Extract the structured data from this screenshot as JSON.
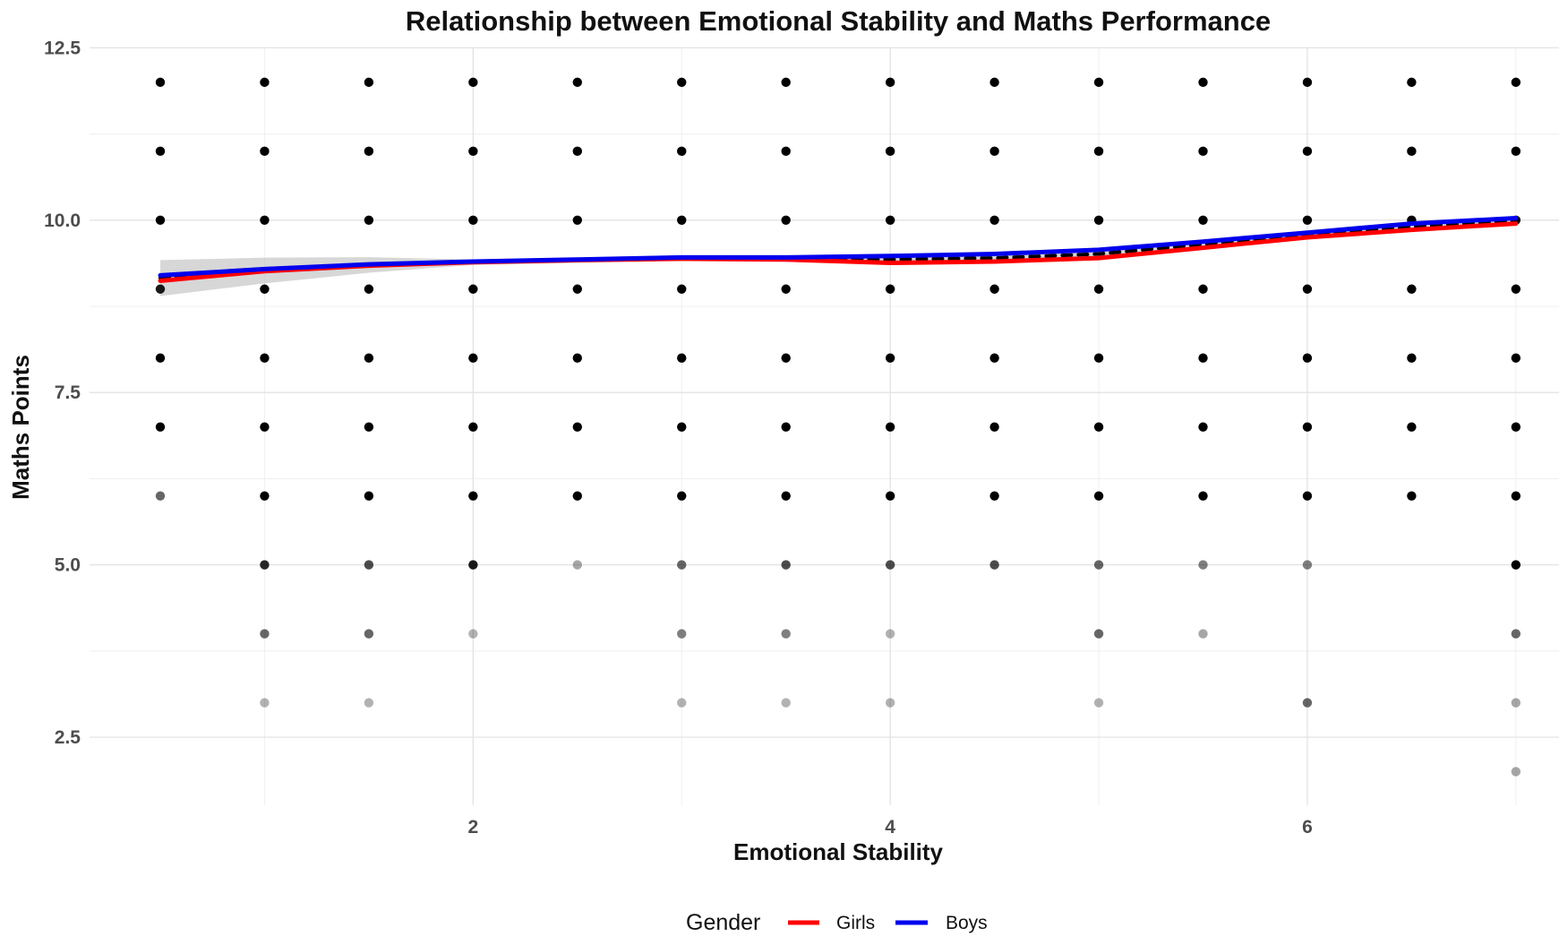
{
  "chart_data": {
    "type": "scatter",
    "title": "Relationship between Emotional Stability and Maths Performance",
    "xlabel": "Emotional Stability",
    "ylabel": "Maths Points",
    "xlim": [
      0.25,
      7.25
    ],
    "ylim": [
      1.55,
      12.5
    ],
    "x_ticks": [
      2,
      4,
      6
    ],
    "y_ticks": [
      2.5,
      5.0,
      7.5,
      10.0,
      12.5
    ],
    "grid": true,
    "legend_position": "bottom",
    "legend_title": "Gender",
    "points_color": "#000000",
    "points_x": [
      0.5,
      1,
      1.5,
      2,
      2.5,
      3,
      3.5,
      4,
      4.5,
      5,
      5.5,
      6,
      6.5,
      7
    ],
    "points_y": [
      2,
      3,
      4,
      5,
      6,
      7,
      8,
      9,
      10,
      11,
      12
    ],
    "point_opacity": {
      "0.5": {
        "6": 0.6,
        "9": 0.9
      },
      "1": {
        "3": 0.3,
        "4": 0.6,
        "5": 0.85
      },
      "1.5": {
        "3": 0.3,
        "4": 0.6,
        "5": 0.7
      },
      "2": {
        "4": 0.3,
        "5": 0.9
      },
      "2.5": {
        "5": 0.35
      },
      "3": {
        "3": 0.3,
        "4": 0.5,
        "5": 0.6
      },
      "3.5": {
        "3": 0.3,
        "4": 0.5,
        "5": 0.7
      },
      "4": {
        "3": 0.3,
        "4": 0.3,
        "5": 0.7
      },
      "4.5": {
        "5": 0.7
      },
      "5": {
        "3": 0.3,
        "4": 0.6,
        "5": 0.6
      },
      "5.5": {
        "4": 0.35,
        "5": 0.5
      },
      "6": {
        "3": 0.6,
        "5": 0.5
      },
      "7": {
        "2": 0.35,
        "3": 0.35,
        "4": 0.6
      }
    },
    "point_absent": {
      "0.5": [
        2,
        3,
        4,
        5
      ],
      "1": [
        2
      ],
      "1.5": [
        2
      ],
      "2": [
        2,
        3
      ],
      "2.5": [
        2,
        3,
        4
      ],
      "3": [
        2
      ],
      "3.5": [
        2
      ],
      "4": [
        2
      ],
      "4.5": [
        2,
        3,
        4
      ],
      "5": [
        2
      ],
      "5.5": [
        2,
        3
      ],
      "6": [
        2,
        4
      ],
      "6.5": [
        2,
        3,
        4,
        5
      ]
    },
    "series": [
      {
        "name": "Girls",
        "color": "#ff0000",
        "x": [
          0.5,
          1,
          1.5,
          2,
          2.5,
          3,
          3.5,
          4,
          4.5,
          5,
          5.5,
          6,
          6.5,
          7
        ],
        "y": [
          9.12,
          9.26,
          9.34,
          9.39,
          9.42,
          9.44,
          9.43,
          9.38,
          9.4,
          9.45,
          9.6,
          9.75,
          9.86,
          9.95
        ]
      },
      {
        "name": "Boys",
        "color": "#0000ee",
        "x": [
          0.5,
          1,
          1.5,
          2,
          2.5,
          3,
          3.5,
          4,
          4.5,
          5,
          5.5,
          6,
          6.5,
          7
        ],
        "y": [
          9.2,
          9.29,
          9.36,
          9.4,
          9.43,
          9.46,
          9.46,
          9.48,
          9.51,
          9.57,
          9.69,
          9.82,
          9.95,
          10.03
        ]
      },
      {
        "color": "#000000",
        "x": [
          0.5,
          1,
          1.5,
          2,
          2.5,
          3,
          3.5,
          4,
          4.5,
          5,
          5.5,
          6,
          6.5,
          7
        ],
        "y": [
          9.16,
          9.27,
          9.35,
          9.39,
          9.42,
          9.45,
          9.45,
          9.43,
          9.45,
          9.51,
          9.65,
          9.79,
          9.91,
          9.99
        ]
      }
    ]
  }
}
